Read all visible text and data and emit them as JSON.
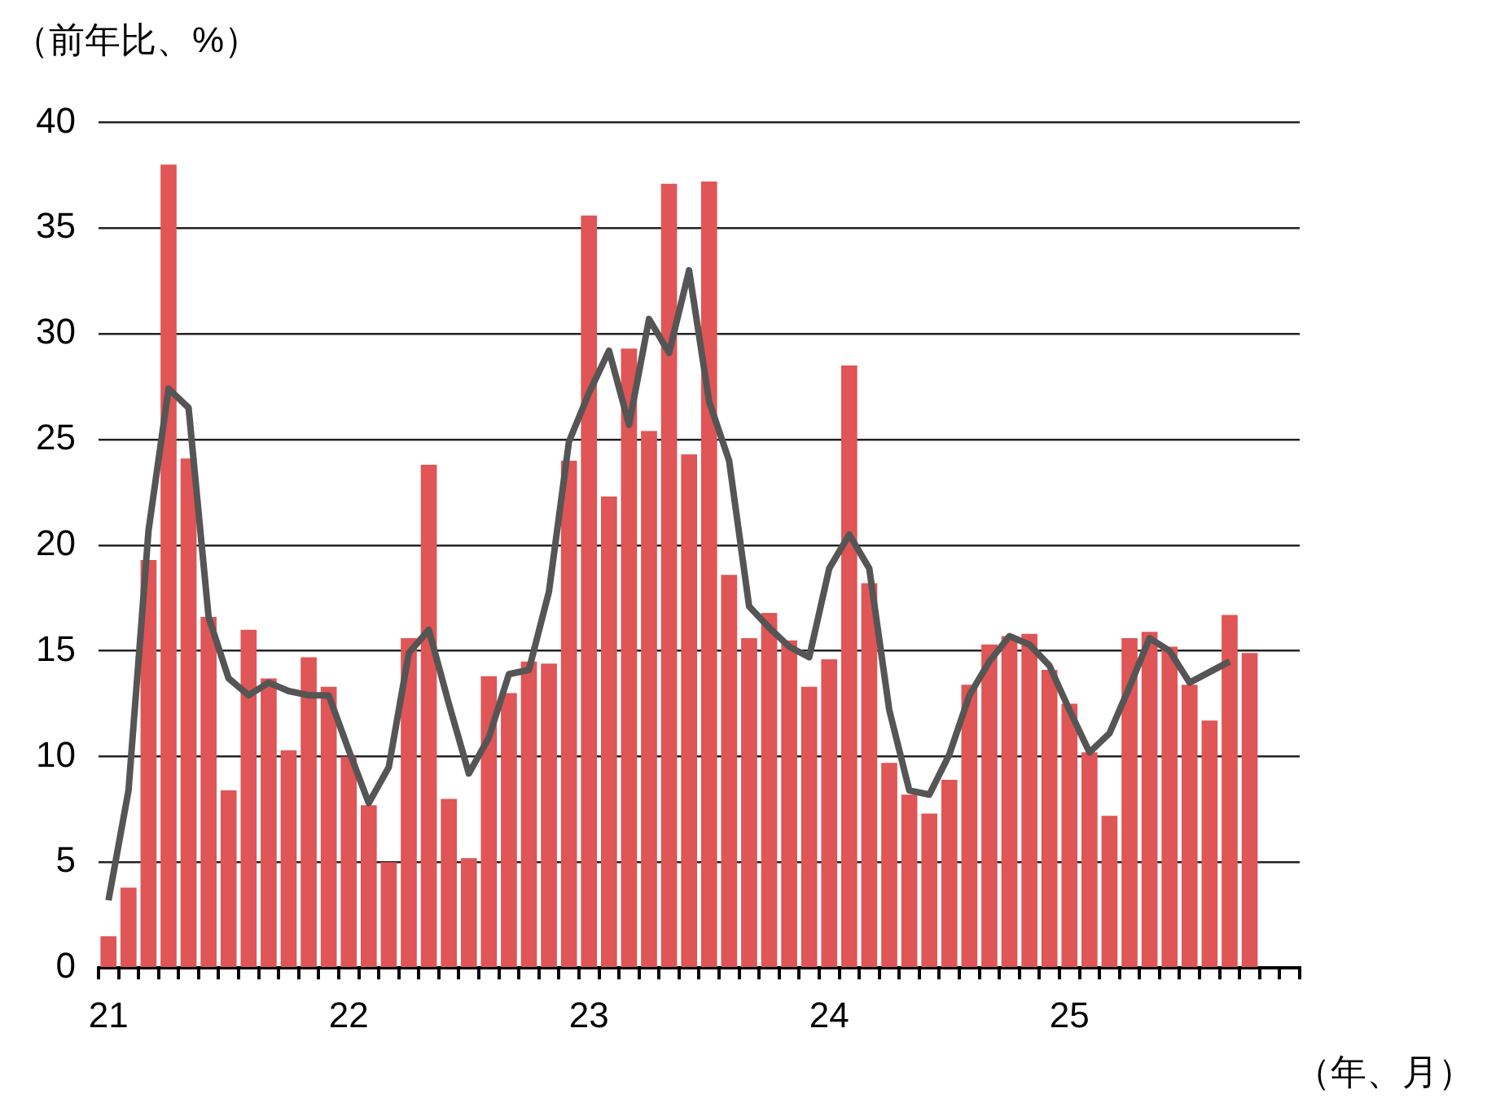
{
  "chart_data": {
    "type": "bar",
    "ylabel": "（前年比、%）",
    "xlabel": "（年、月）",
    "categories": [
      "21",
      null,
      null,
      null,
      null,
      null,
      null,
      null,
      null,
      null,
      null,
      null,
      "22",
      null,
      null,
      null,
      null,
      null,
      null,
      null,
      null,
      null,
      null,
      null,
      "23",
      null,
      null,
      null,
      null,
      null,
      null,
      null,
      null,
      null,
      null,
      null,
      "24",
      null,
      null,
      null,
      null,
      null,
      null,
      null,
      null,
      null,
      null,
      null,
      "25",
      null,
      null,
      null,
      null,
      null,
      null,
      null,
      null,
      null,
      null,
      null
    ],
    "series": [
      {
        "color": "#e05555",
        "values": [
          1.5,
          3.8,
          19.3,
          38.0,
          24.1,
          16.6,
          8.4,
          16.0,
          13.7,
          10.3,
          14.7,
          13.3,
          10.0,
          7.7,
          5.0,
          15.6,
          23.8,
          8.0,
          5.2,
          13.8,
          13.0,
          14.5,
          14.4,
          24.0,
          35.6,
          22.3,
          29.3,
          25.4,
          37.1,
          24.3,
          37.2,
          18.6,
          15.6,
          16.8,
          15.5,
          13.3,
          14.6,
          28.5,
          18.2,
          9.7,
          8.2,
          7.3,
          8.9,
          13.4,
          15.3,
          15.7,
          15.8,
          14.1,
          12.5,
          10.2,
          7.2,
          15.6,
          15.9,
          15.2,
          13.4,
          11.7,
          16.7,
          14.9,
          null,
          null
        ]
      },
      {
        "type": "line",
        "color": "#555555",
        "values": [
          3.2,
          8.4,
          20.7,
          27.4,
          26.5,
          16.6,
          13.7,
          12.9,
          13.5,
          13.1,
          12.9,
          12.9,
          10.3,
          7.8,
          9.5,
          14.9,
          16.0,
          12.5,
          9.2,
          10.9,
          13.9,
          14.1,
          17.8,
          24.9,
          27.2,
          29.2,
          25.7,
          30.7,
          29.1,
          33.0,
          26.8,
          24.0,
          17.1,
          16.1,
          15.2,
          14.7,
          18.9,
          20.5,
          18.9,
          12.2,
          8.4,
          8.2,
          10.1,
          12.9,
          14.5,
          15.7,
          15.3,
          14.3,
          12.2,
          10.2,
          11.1,
          13.3,
          15.6,
          15.0,
          13.5,
          14.0,
          14.5,
          null,
          null,
          null
        ]
      }
    ],
    "ylim": [
      0,
      40
    ],
    "yticks": [
      0,
      5,
      10,
      15,
      20,
      25,
      30,
      35,
      40
    ],
    "grid": "y",
    "legend": false,
    "marker": "none",
    "line_style": "solid"
  }
}
